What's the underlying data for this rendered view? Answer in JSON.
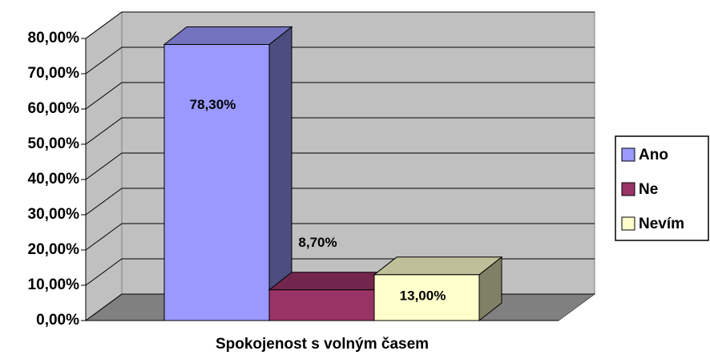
{
  "chart_data": {
    "type": "bar3d",
    "categories": [
      "Spokojenost s volným časem"
    ],
    "series": [
      {
        "name": "Ano",
        "color": "#9999ff",
        "values": [
          78.3
        ],
        "value_labels": [
          "78,30%"
        ]
      },
      {
        "name": "Ne",
        "color": "#993366",
        "values": [
          8.7
        ],
        "value_labels": [
          "8,70%"
        ]
      },
      {
        "name": "Nevím",
        "color": "#ffffcc",
        "values": [
          13
        ],
        "value_labels": [
          "13,00%"
        ]
      }
    ],
    "ylim": [
      0,
      80
    ],
    "yticks": [
      {
        "value": 0,
        "label": "0,00%"
      },
      {
        "value": 10,
        "label": "10,00%"
      },
      {
        "value": 20,
        "label": "20,00%"
      },
      {
        "value": 30,
        "label": "30,00%"
      },
      {
        "value": 40,
        "label": "40,00%"
      },
      {
        "value": 50,
        "label": "50,00%"
      },
      {
        "value": 60,
        "label": "60,00%"
      },
      {
        "value": 70,
        "label": "70,00%"
      },
      {
        "value": 80,
        "label": "80,00%"
      }
    ],
    "grid": true,
    "legend": "right"
  }
}
